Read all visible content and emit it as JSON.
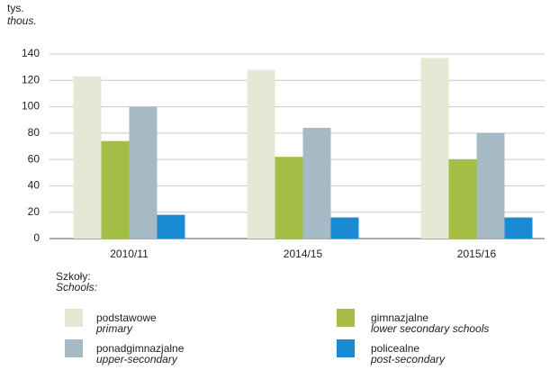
{
  "chart_data": {
    "type": "bar",
    "y_label": "tys.",
    "y_label_en": "thous.",
    "legend_title": "Szkoły:",
    "legend_title_en": "Schools:",
    "categories": [
      "2010/11",
      "2014/15",
      "2015/16"
    ],
    "series": [
      {
        "name": "podstawowe",
        "name_en": "primary",
        "color": "#e6e8d6",
        "values": [
          123,
          128,
          137
        ]
      },
      {
        "name": "gimnazjalne",
        "name_en": "lower secondary schools",
        "color": "#a3bd45",
        "values": [
          74,
          62,
          60
        ]
      },
      {
        "name": "ponadgimnazjalne",
        "name_en": "upper-secondary",
        "color": "#a5bac4",
        "values": [
          100,
          84,
          80
        ]
      },
      {
        "name": "policealne",
        "name_en": "post-secondary",
        "color": "#1a8ad4",
        "values": [
          18,
          16,
          16
        ]
      }
    ],
    "ylim": [
      0,
      140
    ],
    "yticks": [
      0,
      20,
      40,
      60,
      80,
      100,
      120,
      140
    ],
    "grid": true
  }
}
